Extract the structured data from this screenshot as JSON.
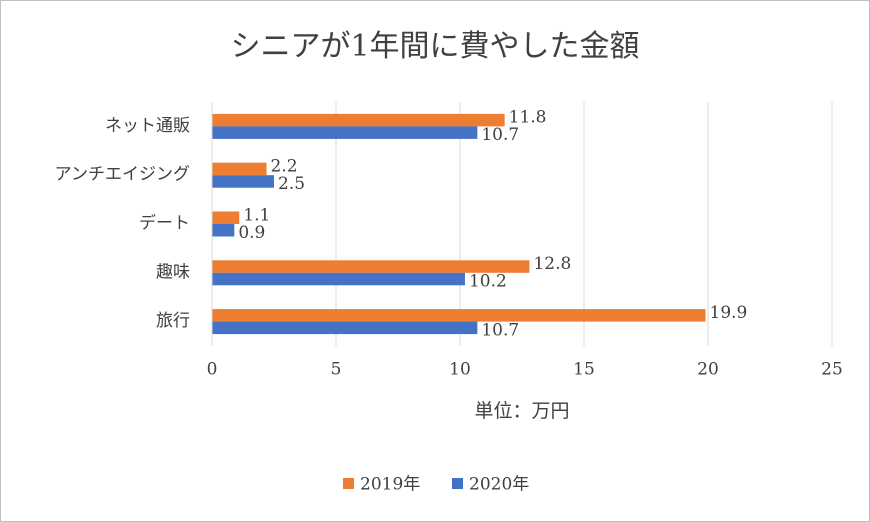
{
  "chart_data": {
    "type": "barh",
    "title": "シニアが1年間に費やした金額",
    "categories": [
      "ネット通販",
      "アンチエイジング",
      "デート",
      "趣味",
      "旅行"
    ],
    "series": [
      {
        "name": "2019年",
        "color": "#ed7d31",
        "values": [
          11.8,
          2.2,
          1.1,
          12.8,
          19.9
        ]
      },
      {
        "name": "2020年",
        "color": "#4472c4",
        "values": [
          10.7,
          2.5,
          0.9,
          10.2,
          10.7
        ]
      }
    ],
    "x_label": "単位：万円",
    "xlim": [
      0,
      25
    ],
    "xticks": [
      0,
      5,
      10,
      15,
      20,
      25
    ],
    "grid": true,
    "legend": "bottom"
  }
}
